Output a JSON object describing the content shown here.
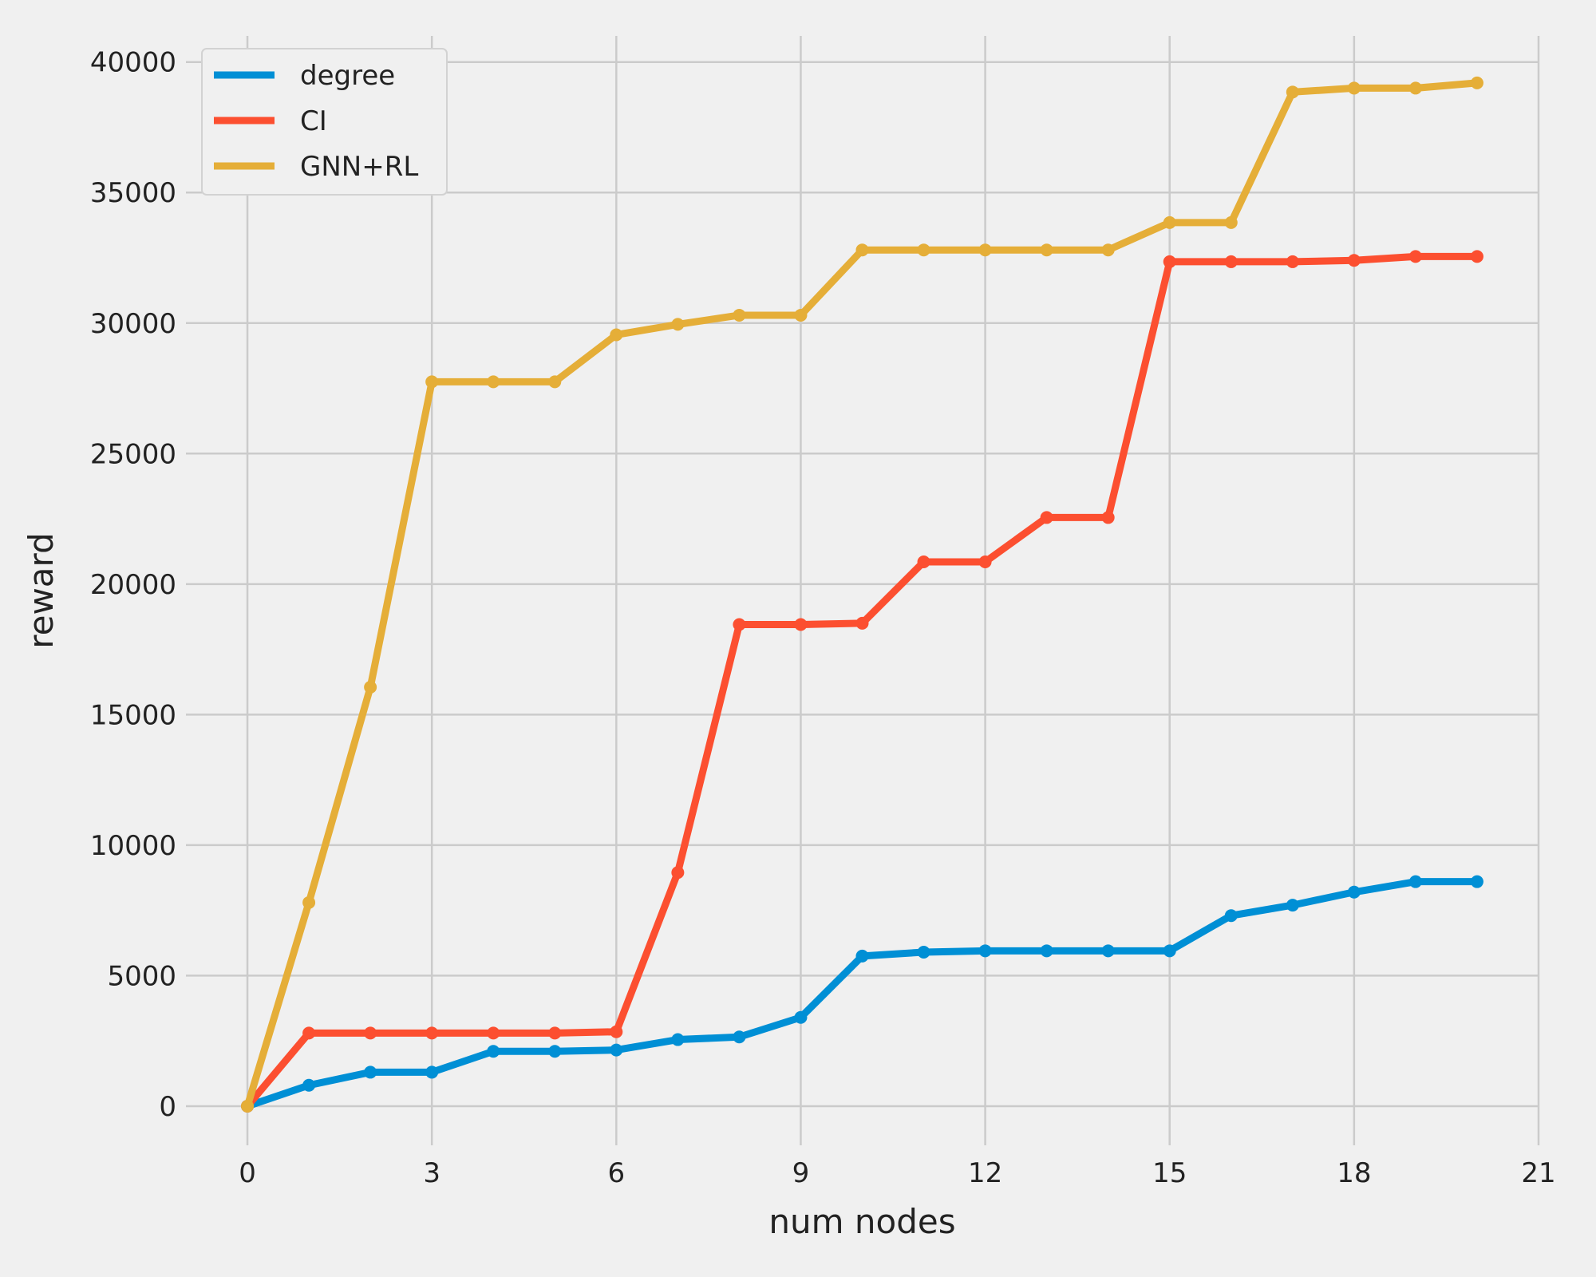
{
  "chart_data": {
    "type": "line",
    "xlabel": "num nodes",
    "ylabel": "reward",
    "xlim": [
      -1,
      21
    ],
    "ylim": [
      -1500,
      41000
    ],
    "xticks": [
      0,
      3,
      6,
      9,
      12,
      15,
      18,
      21
    ],
    "yticks": [
      0,
      5000,
      10000,
      15000,
      20000,
      25000,
      30000,
      35000,
      40000
    ],
    "grid": true,
    "legend_position": "top-left",
    "x": [
      0,
      1,
      2,
      3,
      4,
      5,
      6,
      7,
      8,
      9,
      10,
      11,
      12,
      13,
      14,
      15,
      16,
      17,
      18,
      19,
      20
    ],
    "series": [
      {
        "name": "degree",
        "color": "#008fd5",
        "values": [
          0,
          800,
          1300,
          1300,
          2100,
          2100,
          2150,
          2550,
          2650,
          3400,
          5750,
          5900,
          5950,
          5950,
          5950,
          5950,
          7300,
          7700,
          8200,
          8600,
          8600
        ]
      },
      {
        "name": "CI",
        "color": "#fc4f30",
        "values": [
          0,
          2800,
          2800,
          2800,
          2800,
          2800,
          2850,
          8950,
          18450,
          18450,
          18500,
          20850,
          20850,
          22550,
          22550,
          32350,
          32350,
          32350,
          32400,
          32550,
          32550
        ]
      },
      {
        "name": "GNN+RL",
        "color": "#e5ae38",
        "values": [
          0,
          7800,
          16050,
          27750,
          27750,
          27750,
          29550,
          29950,
          30300,
          30300,
          32800,
          32800,
          32800,
          32800,
          32800,
          33850,
          33850,
          38850,
          39000,
          39000,
          39200
        ]
      }
    ]
  }
}
